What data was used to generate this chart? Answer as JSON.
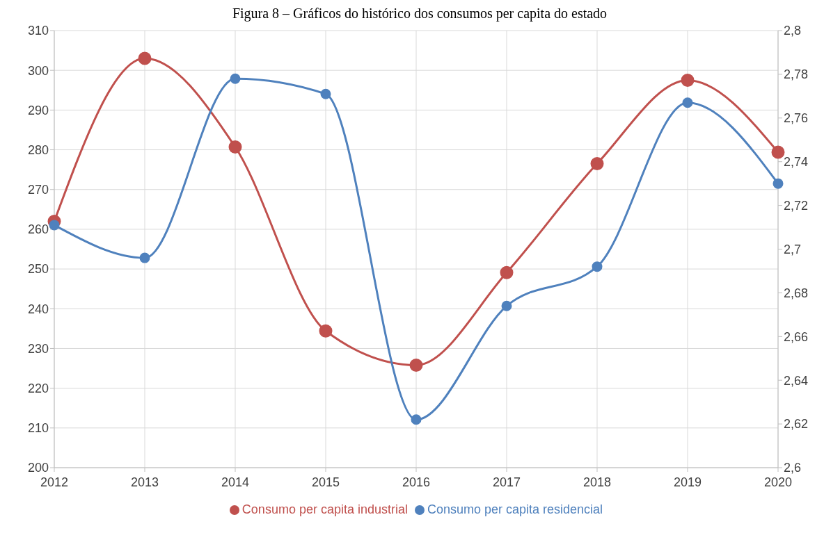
{
  "chart_data": {
    "type": "line",
    "title": "Figura 8 – Gráficos do histórico dos consumos per capita do estado",
    "categories": [
      "2012",
      "2013",
      "2014",
      "2015",
      "2016",
      "2017",
      "2018",
      "2019",
      "2020"
    ],
    "series": [
      {
        "name": "Consumo per capita industrial",
        "color": "#c0504d",
        "values": [
          262,
          303,
          280.7,
          234.4,
          225.8,
          249.1,
          276.5,
          297.5,
          279.4
        ]
      },
      {
        "name": "Consumo per capita residencial",
        "color": "#4f81bd",
        "axis": "y2",
        "values": [
          2.711,
          2.696,
          2.778,
          2.771,
          2.622,
          2.674,
          2.692,
          2.767,
          2.73
        ]
      }
    ],
    "ylim": [
      200,
      310
    ],
    "yticks": [
      200,
      210,
      220,
      230,
      240,
      250,
      260,
      270,
      280,
      290,
      300,
      310
    ],
    "y2lim": [
      2.6,
      2.8
    ],
    "y2ticks": [
      {
        "value": 2.6,
        "label": "2,6"
      },
      {
        "value": 2.62,
        "label": "2,62"
      },
      {
        "value": 2.64,
        "label": "2,64"
      },
      {
        "value": 2.66,
        "label": "2,66"
      },
      {
        "value": 2.68,
        "label": "2,68"
      },
      {
        "value": 2.7,
        "label": "2,7"
      },
      {
        "value": 2.72,
        "label": "2,72"
      },
      {
        "value": 2.74,
        "label": "2,74"
      },
      {
        "value": 2.76,
        "label": "2,76"
      },
      {
        "value": 2.78,
        "label": "2,78"
      },
      {
        "value": 2.8,
        "label": "2,8"
      }
    ],
    "grid": true,
    "legend": "bottom",
    "marker": "circle",
    "line_style": "solid"
  }
}
